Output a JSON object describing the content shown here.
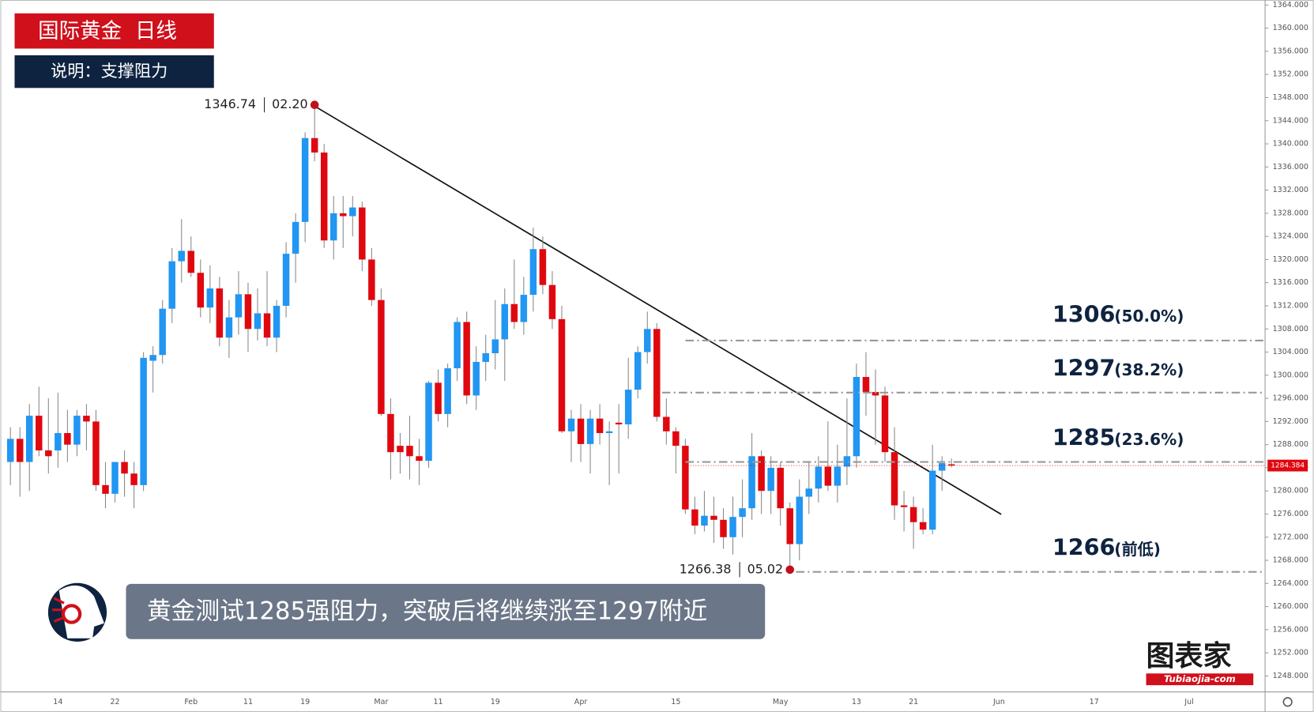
{
  "header": {
    "title": "国际黄金  日线",
    "subtitle": "说明：支撑阻力"
  },
  "caption": "黄金测试1285强阻力，突破后将继续涨至1297附近",
  "logo": {
    "name": "图表家",
    "url": "Tubiaojia-com"
  },
  "chart_data": {
    "type": "candlestick",
    "up_color": "#2196f3",
    "down_color": "#e0080f",
    "categories": [
      null,
      null,
      null,
      null,
      null,
      "14",
      null,
      null,
      null,
      null,
      null,
      "22",
      null,
      null,
      null,
      null,
      null,
      null,
      null,
      "Feb",
      null,
      null,
      null,
      null,
      null,
      "11",
      null,
      null,
      null,
      null,
      null,
      "19",
      null,
      null,
      null,
      null,
      null,
      null,
      null,
      "Mar",
      null,
      null,
      null,
      null,
      null,
      "11",
      null,
      null,
      null,
      null,
      null,
      "19",
      null,
      null,
      null,
      null,
      null,
      null,
      null,
      null,
      "Apr",
      null,
      null,
      null,
      null,
      null,
      null,
      null,
      null,
      null,
      "15",
      null,
      null,
      null,
      null,
      null,
      null,
      null,
      null,
      null,
      null,
      "May",
      null,
      null,
      null,
      null,
      null,
      null,
      null,
      "13",
      null,
      null,
      null,
      null,
      null,
      "21",
      null,
      null,
      null,
      null,
      null,
      null,
      null,
      null,
      "Jun",
      null,
      null,
      null,
      null,
      null,
      null,
      null,
      null,
      null,
      "17",
      null,
      null,
      null,
      null,
      null,
      null,
      null,
      null,
      null,
      "Jul",
      null
    ],
    "open": [
      1285,
      1289,
      1285,
      1293,
      1287,
      1287,
      1290,
      1288,
      1293,
      1292,
      1281,
      1279.5,
      1285,
      1283,
      1281,
      1302.5,
      1303.5,
      1311.5,
      1319.7,
      1321.5,
      1317.7,
      1311.7,
      1315,
      1306.5,
      1310,
      1314,
      1308,
      1310.7,
      1306.5,
      1312,
      1321,
      1326.5,
      1341,
      1338.5,
      1323.3,
      1328,
      1327.5,
      1329,
      1320,
      1313,
      1293.3,
      1287.8,
      1287.8,
      1286,
      1285.2,
      1298.7,
      1293.3,
      1301.2,
      1309.2,
      1296.5,
      1302.3,
      1303.8,
      1306.2,
      1312.3,
      1309.2,
      1313.9,
      1321.8,
      1315.6,
      1309.7,
      1290.3,
      1292.5,
      1288.1,
      1292.5,
      1290,
      1291.8,
      1291.5,
      1297.5,
      1304,
      1308,
      1292.8,
      1290.3,
      1287.8,
      1276.8,
      1274,
      1275.7,
      1275,
      1272,
      1275.5,
      1277,
      1286,
      1280,
      1284,
      1277,
      1270.8,
      1279,
      1280.4,
      1284.2,
      1280.9,
      1284.2,
      1286,
      1299.7,
      1297.1,
      1296.5,
      1286.7,
      1277.5,
      1277.2,
      1274.6,
      1273.3,
      1283.5,
      1284.6,
      null,
      null,
      null,
      null,
      null,
      null,
      null,
      null,
      null,
      null,
      null,
      null,
      null,
      null,
      null,
      null,
      null,
      null,
      null,
      null,
      null,
      null,
      null,
      null,
      null,
      null
    ],
    "high": [
      1291,
      1291,
      1295,
      1298,
      1296,
      1297,
      1294,
      1294,
      1295,
      1294,
      1285,
      1285,
      1287,
      1285,
      1304,
      1305,
      1313,
      1322,
      1327,
      1324,
      1320,
      1319,
      1317,
      1313,
      1318,
      1316,
      1315,
      1318,
      1313,
      1323,
      1328,
      1342,
      1346.74,
      1340,
      1331,
      1331,
      1331,
      1330,
      1322,
      1315,
      1296,
      1290,
      1293,
      1289,
      1299,
      1301,
      1302,
      1310,
      1311,
      1305,
      1307,
      1313,
      1315,
      1320,
      1317,
      1325.5,
      1324,
      1318,
      1312,
      1294,
      1295,
      1294,
      1295,
      1292,
      1295,
      1303,
      1305,
      1311,
      1309,
      1296,
      1291,
      1289,
      1279,
      1280,
      1279,
      1277,
      1279,
      1282,
      1290,
      1287,
      1286,
      1285,
      1278,
      1282,
      1285,
      1286,
      1292,
      1288,
      1296,
      1302,
      1304,
      1301,
      1298,
      1291,
      1280,
      1279,
      1277,
      1288,
      1286,
      1285.6,
      null,
      null,
      null,
      null,
      null,
      null,
      null,
      null,
      null,
      null,
      null,
      null,
      null,
      null,
      null,
      null,
      null,
      null,
      null,
      null,
      null,
      null,
      null,
      null,
      null,
      null
    ],
    "low": [
      1281,
      1279,
      1280,
      1286,
      1283,
      1284,
      1285,
      1286,
      1287,
      1280,
      1277,
      1278,
      1279,
      1277,
      1280,
      1297,
      1302,
      1309,
      1316,
      1317,
      1310,
      1309,
      1305,
      1303,
      1307,
      1304,
      1306,
      1305,
      1304,
      1310,
      1316,
      1323,
      1337,
      1322,
      1320,
      1322,
      1324,
      1318,
      1312,
      1293,
      1282,
      1283,
      1282,
      1281,
      1284,
      1292,
      1291,
      1299,
      1295,
      1294,
      1299,
      1301,
      1299,
      1308,
      1307,
      1311,
      1314,
      1308,
      1290,
      1285,
      1285,
      1283,
      1288,
      1281,
      1283,
      1289,
      1296,
      1302,
      1292,
      1288,
      1283,
      1276,
      1272.5,
      1273,
      1271,
      1270,
      1269,
      1272,
      1275,
      1276,
      1276,
      1274,
      1266.38,
      1268,
      1276,
      1278,
      1280,
      1278,
      1281,
      1284,
      1293,
      1288,
      1285,
      1275,
      1273,
      1270,
      1272.5,
      1272.5,
      1280,
      1284.1,
      null,
      null,
      null,
      null,
      null,
      null,
      null,
      null,
      null,
      null,
      null,
      null,
      null,
      null,
      null,
      null,
      null,
      null,
      null,
      null,
      null,
      null,
      null,
      null,
      null,
      null
    ],
    "close": [
      1289,
      1285,
      1293,
      1287,
      1286,
      1290,
      1288,
      1293,
      1292,
      1281,
      1279.5,
      1285,
      1283,
      1281,
      1303,
      1303.5,
      1311.5,
      1319.7,
      1321.5,
      1317.7,
      1311.7,
      1315,
      1306.5,
      1310,
      1314,
      1308,
      1310.7,
      1306.5,
      1312,
      1321,
      1326.5,
      1341,
      1338.5,
      1323.3,
      1328,
      1327.5,
      1329,
      1320,
      1313,
      1293.3,
      1286.7,
      1286.7,
      1286,
      1285.2,
      1298.7,
      1293.3,
      1301.2,
      1309.2,
      1296.5,
      1302.3,
      1303.8,
      1306.2,
      1312.3,
      1309.2,
      1313.9,
      1321.8,
      1315.6,
      1309.7,
      1290.3,
      1292.5,
      1288.1,
      1292.5,
      1290,
      1290.3,
      1291.5,
      1297.5,
      1304,
      1308,
      1292.8,
      1290.3,
      1287.8,
      1276.8,
      1274,
      1275.7,
      1275,
      1272,
      1275.5,
      1277,
      1286,
      1280,
      1284,
      1277,
      1270.8,
      1279,
      1280.4,
      1284.2,
      1280.9,
      1284.2,
      1286,
      1299.7,
      1297.1,
      1296.5,
      1286.7,
      1277.5,
      1277.2,
      1274.6,
      1273.3,
      1283.5,
      1284.8,
      1284.384,
      null,
      null,
      null,
      null,
      null,
      null,
      null,
      null,
      null,
      null,
      null,
      null,
      null,
      null,
      null,
      null,
      null,
      null,
      null,
      null,
      null,
      null,
      null,
      null,
      null,
      null
    ],
    "ylim": [
      1245.25,
      1364.87
    ],
    "yticks": [
      {
        "value": 1248,
        "label": "1248.000"
      },
      {
        "value": 1252,
        "label": "1252.000"
      },
      {
        "value": 1256,
        "label": "1256.000"
      },
      {
        "value": 1260,
        "label": "1260.000"
      },
      {
        "value": 1264,
        "label": "1264.000"
      },
      {
        "value": 1268,
        "label": "1268.000"
      },
      {
        "value": 1272,
        "label": "1272.000"
      },
      {
        "value": 1276,
        "label": "1276.000"
      },
      {
        "value": 1280,
        "label": "1280.000"
      },
      {
        "value": 1284,
        "label": "1284.000"
      },
      {
        "value": 1288,
        "label": "1288.000"
      },
      {
        "value": 1292,
        "label": "1292.000"
      },
      {
        "value": 1296,
        "label": "1296.000"
      },
      {
        "value": 1300,
        "label": "1300.000"
      },
      {
        "value": 1304,
        "label": "1304.000"
      },
      {
        "value": 1308,
        "label": "1308.000"
      },
      {
        "value": 1312,
        "label": "1312.000"
      },
      {
        "value": 1316,
        "label": "1316.000"
      },
      {
        "value": 1320,
        "label": "1320.000"
      },
      {
        "value": 1324,
        "label": "1324.000"
      },
      {
        "value": 1328,
        "label": "1328.000"
      },
      {
        "value": 1332,
        "label": "1332.000"
      },
      {
        "value": 1336,
        "label": "1336.000"
      },
      {
        "value": 1340,
        "label": "1340.000"
      },
      {
        "value": 1344,
        "label": "1344.000"
      },
      {
        "value": 1348,
        "label": "1348.000"
      },
      {
        "value": 1352,
        "label": "1352.000"
      },
      {
        "value": 1356,
        "label": "1356.000"
      },
      {
        "value": 1360,
        "label": "1360.000"
      },
      {
        "value": 1364,
        "label": "1364.000"
      }
    ],
    "annotations": [
      {
        "value": 1346.74,
        "date": "02.20"
      },
      {
        "value": 1266.38,
        "date": "05.02"
      }
    ],
    "levels": [
      {
        "value": 1306,
        "label": "1306",
        "note": "(50.0%)"
      },
      {
        "value": 1297,
        "label": "1297",
        "note": "(38.2%)"
      },
      {
        "value": 1285,
        "label": "1285",
        "note": "(23.6%)"
      },
      {
        "value": 1266,
        "label": "1266",
        "note": "(前低)"
      }
    ]
  }
}
